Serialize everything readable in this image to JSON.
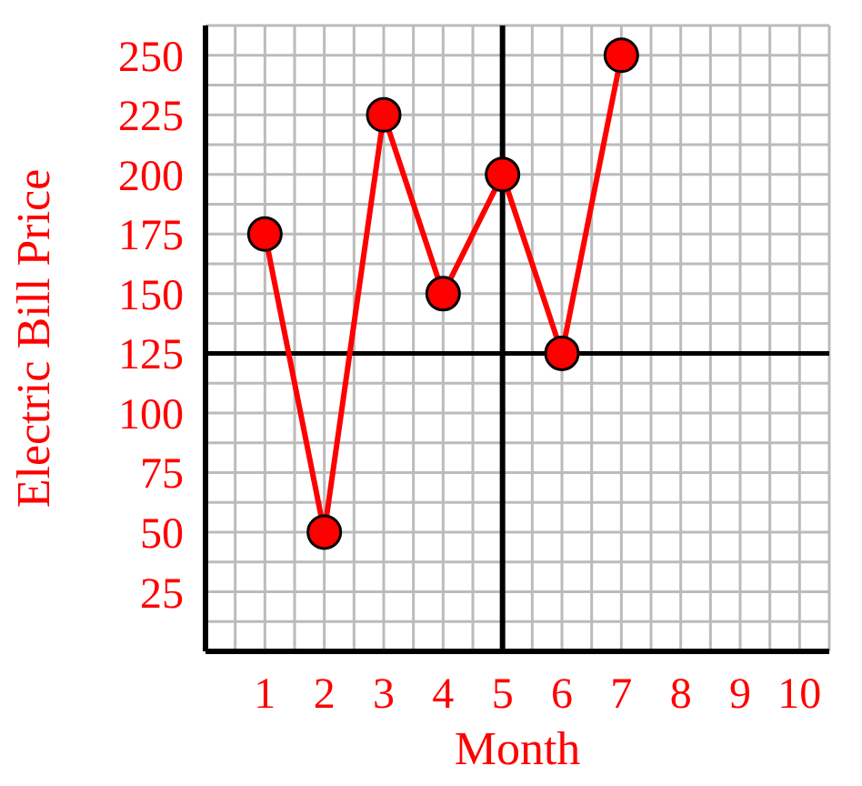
{
  "chart_data": {
    "type": "line",
    "xlabel": "Month",
    "ylabel": "Electric Bill Price",
    "x": [
      1,
      2,
      3,
      4,
      5,
      6,
      7
    ],
    "series": [
      {
        "color": "#ff0000",
        "values": [
          175,
          50,
          225,
          150,
          200,
          125,
          250
        ]
      }
    ],
    "xlim": [
      0,
      10.5
    ],
    "ylim": [
      0,
      262.5
    ],
    "xticks": [
      {
        "value": 0.5,
        "label": null
      },
      1,
      {
        "value": 1.5,
        "label": null
      },
      2,
      {
        "value": 2.5,
        "label": null
      },
      3,
      {
        "value": 3.5,
        "label": null
      },
      4,
      {
        "value": 4.5,
        "label": null
      },
      5,
      {
        "value": 5.5,
        "label": null
      },
      6,
      {
        "value": 6.5,
        "label": null
      },
      7,
      {
        "value": 7.5,
        "label": null
      },
      8,
      {
        "value": 8.5,
        "label": null
      },
      9,
      {
        "value": 9.5,
        "label": null
      },
      10,
      {
        "value": 10.5,
        "label": null
      }
    ],
    "yticks": [
      {
        "value": 12.5,
        "label": null
      },
      25,
      {
        "value": 37.5,
        "label": null
      },
      50,
      {
        "value": 62.5,
        "label": null
      },
      75,
      {
        "value": 87.5,
        "label": null
      },
      100,
      {
        "value": 112.5,
        "label": null
      },
      125,
      {
        "value": 137.5,
        "label": null
      },
      150,
      {
        "value": 162.5,
        "label": null
      },
      175,
      {
        "value": 187.5,
        "label": null
      },
      200,
      {
        "value": 212.5,
        "label": null
      },
      225,
      {
        "value": 237.5,
        "label": null
      },
      250,
      {
        "value": 262.5,
        "label": null
      }
    ],
    "grid": true,
    "marker": "circle",
    "line_style": "solid",
    "ref_lines": [
      {
        "axis": "x",
        "value": 5,
        "color": "#000000"
      },
      {
        "axis": "y",
        "value": 125,
        "color": "#000000"
      }
    ]
  }
}
